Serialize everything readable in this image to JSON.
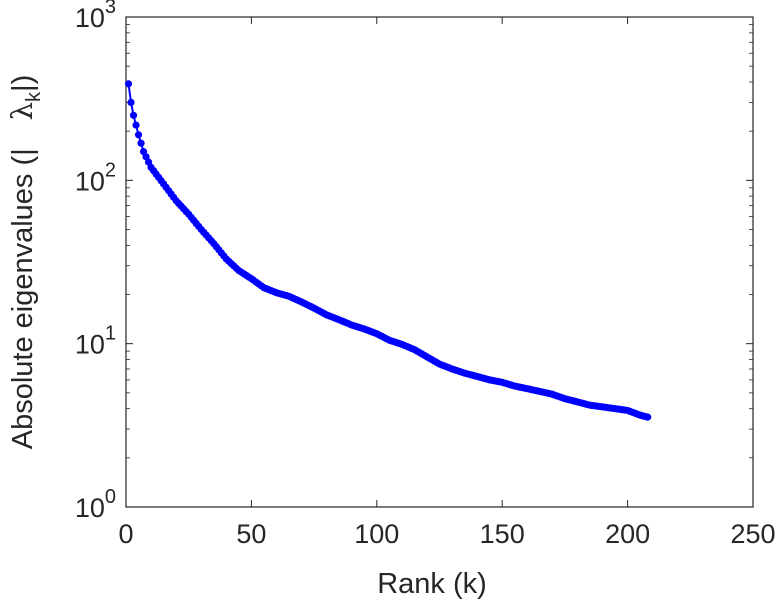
{
  "chart_data": {
    "type": "scatter",
    "title": "",
    "xlabel": "Rank (k)",
    "ylabel_parts": {
      "prefix": "Absolute eigenvalues (|",
      "symbol": "λ",
      "subscript": "k",
      "suffix": "|)"
    },
    "xlim": [
      0,
      250
    ],
    "ylim": [
      1,
      1000
    ],
    "yscale": "log",
    "grid": false,
    "x_ticks": [
      {
        "value": 0,
        "label": "0"
      },
      {
        "value": 50,
        "label": "50"
      },
      {
        "value": 100,
        "label": "100"
      },
      {
        "value": 150,
        "label": "150"
      },
      {
        "value": 200,
        "label": "200"
      },
      {
        "value": 250,
        "label": "250"
      }
    ],
    "y_ticks": [
      {
        "value": 1,
        "base": "10",
        "exp": "0"
      },
      {
        "value": 10,
        "base": "10",
        "exp": "1"
      },
      {
        "value": 100,
        "base": "10",
        "exp": "2"
      },
      {
        "value": 1000,
        "base": "10",
        "exp": "3"
      }
    ],
    "marker_color": "#0000ff",
    "n_points": 208,
    "anchors": [
      [
        1,
        390
      ],
      [
        2,
        300
      ],
      [
        3,
        250
      ],
      [
        5,
        190
      ],
      [
        7,
        150
      ],
      [
        10,
        120
      ],
      [
        15,
        95
      ],
      [
        20,
        75
      ],
      [
        25,
        62
      ],
      [
        30,
        50
      ],
      [
        35,
        41
      ],
      [
        40,
        33
      ],
      [
        45,
        28
      ],
      [
        50,
        25
      ],
      [
        55,
        22
      ],
      [
        60,
        20.5
      ],
      [
        65,
        19.5
      ],
      [
        70,
        18
      ],
      [
        75,
        16.5
      ],
      [
        80,
        15
      ],
      [
        85,
        14
      ],
      [
        90,
        13
      ],
      [
        95,
        12.3
      ],
      [
        100,
        11.5
      ],
      [
        105,
        10.5
      ],
      [
        110,
        9.9
      ],
      [
        115,
        9.2
      ],
      [
        120,
        8.3
      ],
      [
        125,
        7.5
      ],
      [
        130,
        7.0
      ],
      [
        135,
        6.6
      ],
      [
        140,
        6.3
      ],
      [
        145,
        6.0
      ],
      [
        150,
        5.8
      ],
      [
        155,
        5.5
      ],
      [
        160,
        5.3
      ],
      [
        165,
        5.1
      ],
      [
        170,
        4.9
      ],
      [
        175,
        4.6
      ],
      [
        180,
        4.4
      ],
      [
        185,
        4.2
      ],
      [
        190,
        4.1
      ],
      [
        195,
        4.0
      ],
      [
        200,
        3.9
      ],
      [
        205,
        3.65
      ],
      [
        208,
        3.55
      ]
    ]
  }
}
